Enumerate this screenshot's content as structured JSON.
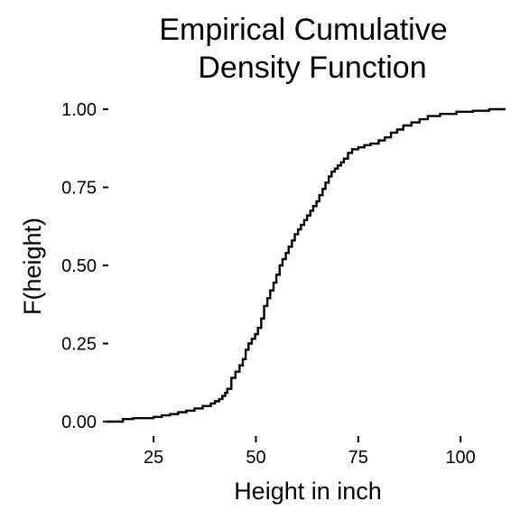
{
  "chart_data": {
    "type": "line",
    "style": "step",
    "title": "Empirical Cumulative\nDensity Function",
    "xlabel": "Height in inch",
    "ylabel": "F(height)",
    "xlim": [
      13.5,
      111
    ],
    "ylim": [
      0,
      1
    ],
    "x_ticks": [
      25,
      50,
      75,
      100
    ],
    "x_tick_labels": [
      "25",
      "50",
      "75",
      "100"
    ],
    "y_ticks": [
      0,
      0.25,
      0.5,
      0.75,
      1
    ],
    "y_tick_labels": [
      "0.00",
      "0.25",
      "0.50",
      "0.75",
      "1.00"
    ],
    "grid": false,
    "line_color": "#000000",
    "series": [
      {
        "x": [
          13.5,
          17.5,
          20,
          25,
          27,
          29,
          31,
          33,
          35,
          37,
          39,
          40,
          41,
          41.8,
          42.5,
          43,
          44,
          45,
          46,
          46.8,
          47.5,
          48.2,
          49,
          49.8,
          50.5,
          51.3,
          52,
          52.8,
          53.5,
          54.3,
          55,
          55.8,
          56.5,
          57.3,
          58,
          58.8,
          59.5,
          60.3,
          61,
          61.8,
          62.5,
          63.3,
          64,
          64.8,
          65.5,
          66.3,
          67,
          67.8,
          68.5,
          69.3,
          70,
          70.8,
          71.5,
          72.5,
          73.5,
          75,
          76.5,
          78,
          80,
          81.5,
          83,
          84.5,
          86,
          88,
          90,
          92,
          95,
          99,
          103,
          107,
          111
        ],
        "y": [
          0.0,
          0.008,
          0.011,
          0.015,
          0.02,
          0.024,
          0.03,
          0.035,
          0.042,
          0.05,
          0.058,
          0.065,
          0.072,
          0.082,
          0.092,
          0.105,
          0.14,
          0.16,
          0.18,
          0.2,
          0.23,
          0.25,
          0.265,
          0.28,
          0.3,
          0.33,
          0.37,
          0.395,
          0.42,
          0.445,
          0.47,
          0.5,
          0.52,
          0.54,
          0.56,
          0.58,
          0.6,
          0.615,
          0.63,
          0.645,
          0.66,
          0.675,
          0.69,
          0.705,
          0.725,
          0.745,
          0.765,
          0.785,
          0.8,
          0.81,
          0.82,
          0.83,
          0.842,
          0.86,
          0.872,
          0.878,
          0.885,
          0.89,
          0.9,
          0.91,
          0.925,
          0.935,
          0.948,
          0.958,
          0.968,
          0.978,
          0.985,
          0.992,
          0.995,
          1.0,
          1.0
        ]
      }
    ]
  }
}
